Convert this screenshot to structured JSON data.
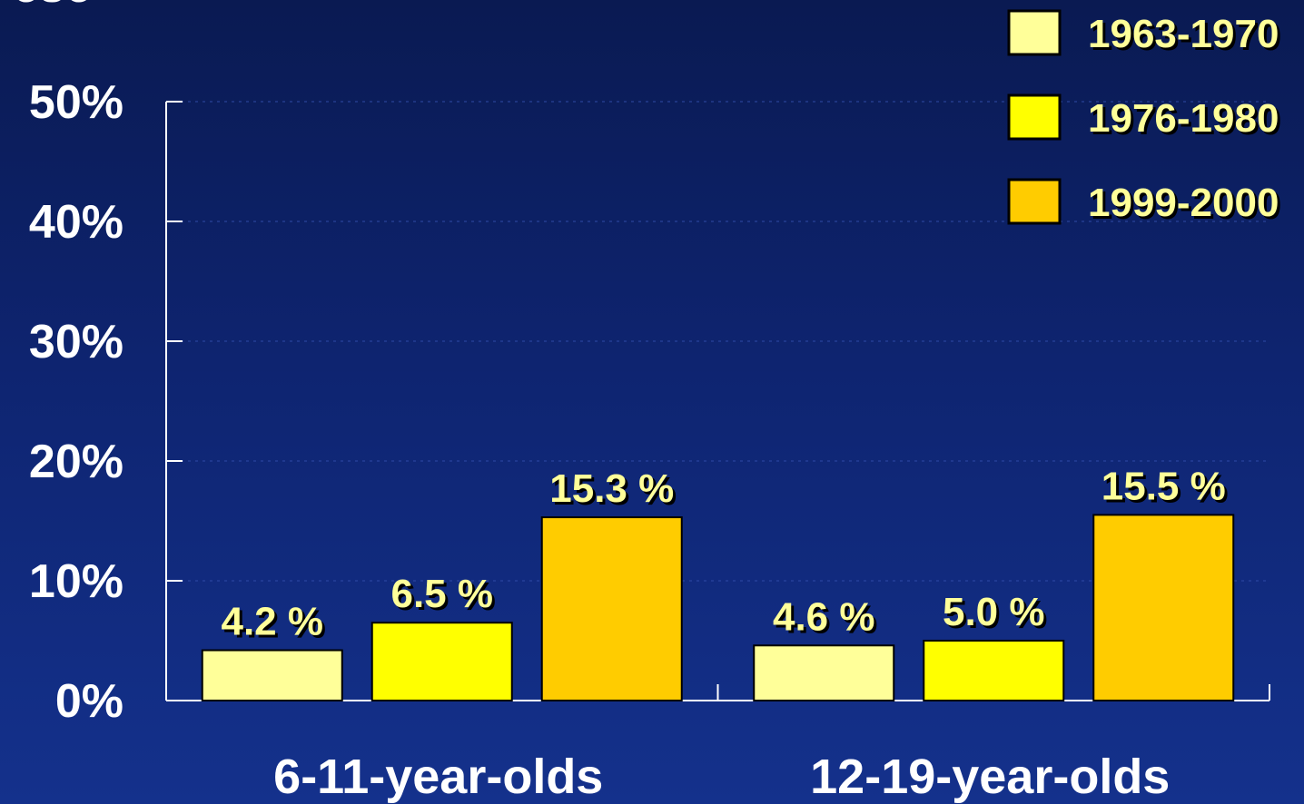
{
  "chart_data": {
    "type": "bar",
    "title_fragment": "ese",
    "categories": [
      "6-11-year-olds",
      "12-19-year-olds"
    ],
    "series": [
      {
        "name": "1963-1970",
        "values": [
          4.2,
          4.6
        ],
        "color": "#ffff99"
      },
      {
        "name": "1976-1980",
        "values": [
          6.5,
          5.0
        ],
        "color": "#ffff00"
      },
      {
        "name": "1999-2000",
        "values": [
          15.3,
          15.5
        ],
        "color": "#ffcc00"
      }
    ],
    "data_labels": [
      [
        "4.2 %",
        "4.6 %"
      ],
      [
        "6.5 %",
        "5.0 %"
      ],
      [
        "15.3 %",
        "15.5 %"
      ]
    ],
    "yticks": [
      "0%",
      "10%",
      "20%",
      "30%",
      "40%",
      "50%"
    ],
    "ytick_values": [
      0,
      10,
      20,
      30,
      40,
      50
    ],
    "ylim": [
      0,
      50
    ],
    "grid": true,
    "legend_position": "top-right",
    "background_color": "#0e2470",
    "text_color": "#ffffff",
    "label_color": "#ffff99"
  }
}
